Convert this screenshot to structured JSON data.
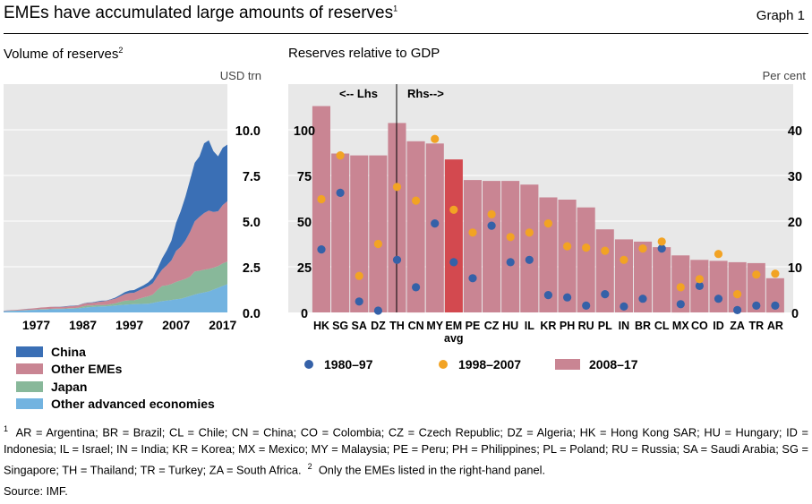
{
  "title": "EMEs have accumulated large amounts of reserves",
  "title_note": "1",
  "graph_label": "Graph 1",
  "left_panel": {
    "title": "Volume of reserves",
    "title_note": "2",
    "unit": "USD trn",
    "legend": [
      {
        "label": "China",
        "color": "#3a6fb5"
      },
      {
        "label": "Other EMEs",
        "color": "#c98593"
      },
      {
        "label": "Japan",
        "color": "#88b89a"
      },
      {
        "label": "Other advanced economies",
        "color": "#72b3e0"
      }
    ]
  },
  "right_panel": {
    "title": "Reserves relative to GDP",
    "unit": "Per cent",
    "lhs_label": "<-- Lhs",
    "rhs_label": "Rhs-->",
    "legend": [
      {
        "label": "1980–97",
        "color": "#3561a8",
        "kind": "dot"
      },
      {
        "label": "1998–2007",
        "color": "#f2a324",
        "kind": "dot"
      },
      {
        "label": "2008–17",
        "color": "#c98593",
        "kind": "bar"
      }
    ]
  },
  "chart_data": [
    {
      "type": "area",
      "title": "Volume of reserves",
      "ylabel": "USD trn",
      "ylim": [
        0,
        12.5
      ],
      "yticks": [
        "0.0",
        "2.5",
        "5.0",
        "7.5",
        "10.0"
      ],
      "xticks": [
        "1977",
        "1987",
        "1997",
        "2007",
        "2017"
      ],
      "stacking": "stacked",
      "x": [
        1970,
        1971,
        1972,
        1973,
        1974,
        1975,
        1976,
        1977,
        1978,
        1979,
        1980,
        1981,
        1982,
        1983,
        1984,
        1985,
        1986,
        1987,
        1988,
        1989,
        1990,
        1991,
        1992,
        1993,
        1994,
        1995,
        1996,
        1997,
        1998,
        1999,
        2000,
        2001,
        2002,
        2003,
        2004,
        2005,
        2006,
        2007,
        2008,
        2009,
        2010,
        2011,
        2012,
        2013,
        2014,
        2015,
        2016,
        2017,
        2018
      ],
      "series": [
        {
          "name": "Other advanced economies",
          "values": [
            0.07,
            0.08,
            0.09,
            0.1,
            0.11,
            0.12,
            0.13,
            0.14,
            0.15,
            0.16,
            0.17,
            0.18,
            0.18,
            0.19,
            0.2,
            0.21,
            0.22,
            0.25,
            0.28,
            0.3,
            0.32,
            0.33,
            0.34,
            0.36,
            0.38,
            0.4,
            0.42,
            0.44,
            0.45,
            0.46,
            0.47,
            0.48,
            0.52,
            0.58,
            0.62,
            0.65,
            0.68,
            0.72,
            0.75,
            0.82,
            0.9,
            0.98,
            1.05,
            1.1,
            1.15,
            1.25,
            1.35,
            1.45,
            1.55
          ]
        },
        {
          "name": "Japan",
          "values": [
            0.003,
            0.01,
            0.015,
            0.012,
            0.012,
            0.012,
            0.015,
            0.02,
            0.03,
            0.02,
            0.025,
            0.03,
            0.025,
            0.025,
            0.03,
            0.03,
            0.04,
            0.08,
            0.1,
            0.08,
            0.08,
            0.07,
            0.07,
            0.1,
            0.12,
            0.18,
            0.22,
            0.22,
            0.21,
            0.28,
            0.35,
            0.4,
            0.46,
            0.66,
            0.83,
            0.83,
            0.88,
            0.95,
            1.0,
            1.02,
            1.06,
            1.26,
            1.23,
            1.24,
            1.23,
            1.2,
            1.19,
            1.23,
            1.24
          ]
        },
        {
          "name": "Other EMEs",
          "values": [
            0.02,
            0.025,
            0.03,
            0.035,
            0.05,
            0.06,
            0.07,
            0.08,
            0.09,
            0.1,
            0.11,
            0.1,
            0.1,
            0.1,
            0.11,
            0.12,
            0.12,
            0.14,
            0.14,
            0.15,
            0.17,
            0.2,
            0.22,
            0.24,
            0.26,
            0.3,
            0.36,
            0.4,
            0.42,
            0.46,
            0.5,
            0.55,
            0.62,
            0.75,
            0.9,
            1.1,
            1.3,
            1.7,
            1.85,
            2.1,
            2.45,
            2.75,
            2.95,
            3.1,
            3.2,
            3.05,
            3.0,
            3.2,
            3.3
          ]
        },
        {
          "name": "China",
          "values": [
            0.001,
            0.001,
            0.001,
            0.001,
            0.001,
            0.002,
            0.002,
            0.002,
            0.002,
            0.002,
            0.003,
            0.004,
            0.01,
            0.015,
            0.017,
            0.013,
            0.011,
            0.015,
            0.018,
            0.017,
            0.03,
            0.043,
            0.02,
            0.022,
            0.052,
            0.075,
            0.107,
            0.143,
            0.145,
            0.155,
            0.166,
            0.212,
            0.286,
            0.403,
            0.61,
            0.82,
            1.07,
            1.53,
            1.95,
            2.4,
            2.85,
            3.2,
            3.31,
            3.82,
            3.84,
            3.33,
            3.01,
            3.14,
            3.1
          ]
        }
      ]
    },
    {
      "type": "bar",
      "title": "Reserves relative to GDP",
      "ylabel": "Per cent",
      "lhs_ylim": [
        0,
        125
      ],
      "rhs_ylim": [
        0,
        50
      ],
      "lhs_yticks": [
        "0",
        "25",
        "50",
        "75",
        "100"
      ],
      "rhs_yticks": [
        "0",
        "10",
        "20",
        "30",
        "40"
      ],
      "categories": [
        "HK",
        "SG",
        "SA",
        "DZ",
        "TH",
        "CN",
        "MY",
        "EM avg",
        "PE",
        "CZ",
        "HU",
        "IL",
        "KR",
        "PH",
        "RU",
        "PL",
        "IN",
        "BR",
        "CL",
        "MX",
        "CO",
        "ID",
        "ZA",
        "TR",
        "AR"
      ],
      "axis_side": [
        "lhs",
        "lhs",
        "lhs",
        "lhs",
        "rhs",
        "rhs",
        "rhs",
        "rhs",
        "rhs",
        "rhs",
        "rhs",
        "rhs",
        "rhs",
        "rhs",
        "rhs",
        "rhs",
        "rhs",
        "rhs",
        "rhs",
        "rhs",
        "rhs",
        "rhs",
        "rhs",
        "rhs",
        "rhs"
      ],
      "highlight": "EM avg",
      "series": [
        {
          "name": "2008–17",
          "kind": "bar",
          "values": [
            113,
            87,
            86,
            86,
            41.5,
            37.5,
            37,
            33.5,
            29,
            28.8,
            28.8,
            28,
            25.2,
            24.7,
            23,
            18.2,
            16,
            15.5,
            14.3,
            12.5,
            11.5,
            11.3,
            11,
            10.8,
            7.5
          ]
        },
        {
          "name": "1980–97",
          "kind": "dot",
          "values": [
            34.5,
            65.5,
            6,
            1,
            11.5,
            5.5,
            19.5,
            11,
            7.5,
            19,
            11,
            11.5,
            3.8,
            3.3,
            1.5,
            4,
            1.3,
            3,
            14,
            1.8,
            5.8,
            3,
            0.5,
            1.5,
            1.5
          ]
        },
        {
          "name": "1998–2007",
          "kind": "dot",
          "values": [
            62,
            86,
            20,
            37.5,
            27.5,
            24.5,
            38,
            22.5,
            17.5,
            21.5,
            16.5,
            17.5,
            19.5,
            14.5,
            14.2,
            13.5,
            11.5,
            14,
            15.5,
            5.5,
            7.3,
            12.8,
            4,
            8.3,
            8.5
          ]
        }
      ]
    }
  ],
  "footnote": {
    "marker1": "1",
    "text1": "AR = Argentina; BR = Brazil; CL = Chile; CN = China; CO = Colombia; CZ = Czech Republic; DZ = Algeria; HK = Hong Kong SAR; HU = Hungary; ID = Indonesia; IL = Israel; IN = India; KR = Korea; MX = Mexico; MY = Malaysia; PE = Peru; PH = Philippines; PL = Poland; RU = Russia; SA = Saudi Arabia; SG = Singapore; TH = Thailand; TR = Turkey; ZA = South Africa.",
    "marker2": "2",
    "text2": "Only the EMEs listed in the right-hand panel."
  },
  "source": "Source: IMF."
}
